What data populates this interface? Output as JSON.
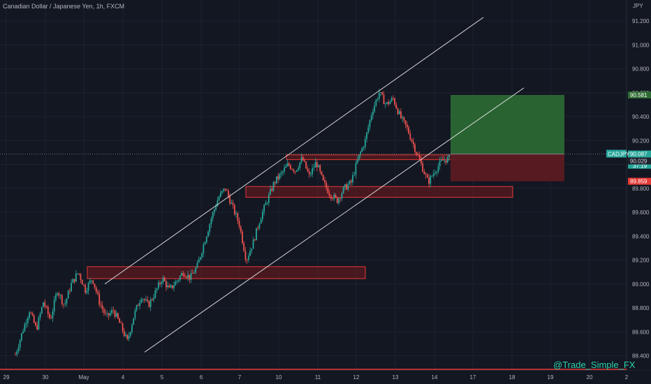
{
  "header": {
    "title": "Canadian Dollar / Japanese Yen, 1h, FXCM",
    "currency": "JPY"
  },
  "watermark": "@Trade_Simple_FX",
  "colors": {
    "background": "#131722",
    "grid": "#1e2230",
    "up": "#26a69a",
    "down": "#ef5350",
    "zone_fill": "#5a1a20",
    "zone_border": "#e53935",
    "channel": "#e8e8e8",
    "target_fill": "#2e6b34",
    "stop_fill": "#5b1a22",
    "entry_line": "#888888"
  },
  "price_axis": {
    "labels": [
      "91.200",
      "91.000",
      "90.800",
      "90.600",
      "90.400",
      "90.200",
      "90.000",
      "89.800",
      "89.600",
      "89.400",
      "89.200",
      "89.000",
      "88.800",
      "88.600",
      "88.400"
    ],
    "tags": [
      {
        "text": "90.581",
        "value": 90.581,
        "bg": "#2e6b34",
        "fg": "#ffffff",
        "label": ""
      },
      {
        "text": "90.087",
        "value": 90.087,
        "bg": "#26a69a",
        "fg": "#ffffff",
        "label": "CADJPY",
        "lines": [
          "2.0%",
          "37:19"
        ]
      },
      {
        "text": "90.029",
        "value": 90.029,
        "bg": "#1e222d",
        "fg": "#d1d4dc",
        "label": ""
      },
      {
        "text": "89.859",
        "value": 89.859,
        "bg": "#e53935",
        "fg": "#ffffff",
        "label": ""
      }
    ]
  },
  "time_axis": [
    "29",
    "30",
    "May",
    "4",
    "5",
    "6",
    "7",
    "10",
    "11",
    "12",
    "13",
    "14",
    "17",
    "18",
    "19",
    "20",
    "2"
  ],
  "chart_data": {
    "type": "candlestick",
    "symbol": "CADJPY",
    "timeframe": "1h",
    "ylim": [
      88.3,
      91.3
    ],
    "support_resistance_zones": [
      {
        "from": 89.045,
        "to": 89.145
      },
      {
        "from": 89.725,
        "to": 89.815
      },
      {
        "from": 90.04,
        "to": 90.08
      }
    ],
    "channel": {
      "upper_line": [
        [
          89.0,
          91.23
        ]
      ],
      "lower_line": [
        [
          88.43,
          90.64
        ]
      ]
    },
    "position": {
      "entry": 90.087,
      "target": 90.581,
      "stop": 89.859
    },
    "price_path": [
      88.41,
      88.6,
      88.78,
      88.62,
      88.85,
      88.7,
      88.95,
      88.82,
      89.0,
      89.1,
      88.95,
      89.05,
      88.85,
      88.72,
      88.78,
      88.66,
      88.52,
      88.75,
      88.9,
      88.82,
      88.93,
      89.05,
      88.95,
      89.02,
      89.1,
      89.05,
      89.15,
      89.35,
      89.55,
      89.72,
      89.8,
      89.65,
      89.5,
      89.2,
      89.35,
      89.55,
      89.7,
      89.85,
      89.92,
      90.0,
      89.95,
      90.05,
      89.9,
      90.02,
      89.85,
      89.75,
      89.7,
      89.8,
      89.85,
      90.05,
      90.2,
      90.45,
      90.6,
      90.5,
      90.55,
      90.4,
      90.3,
      90.15,
      90.0,
      89.85,
      89.95,
      90.03,
      90.05
    ]
  }
}
